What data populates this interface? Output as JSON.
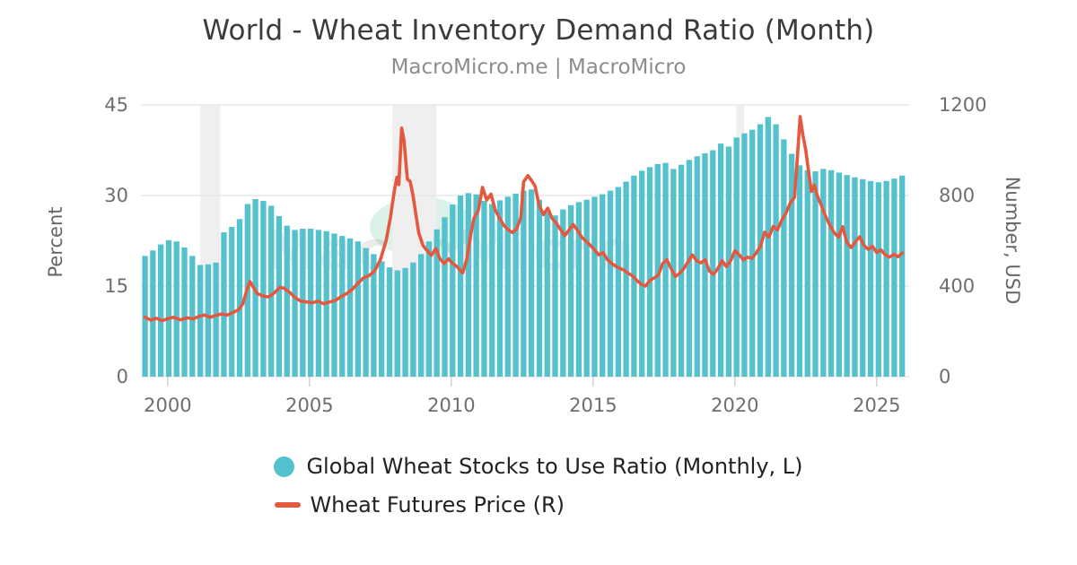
{
  "header": {
    "title": "World - Wheat Inventory Demand Ratio (Month)",
    "subtitle": "MacroMicro.me | MacroMicro"
  },
  "watermark": {
    "text": "MacroMicro",
    "ellipse_color": "#dcf1e8"
  },
  "legend": {
    "items": [
      {
        "label": "Global Wheat Stocks to Use Ratio (Monthly, L)",
        "marker": "circle",
        "color": "#54c2ce"
      },
      {
        "label": "Wheat Futures Price (R)",
        "marker": "line",
        "color": "#e4583f"
      }
    ]
  },
  "chart_data": {
    "type": "combo_bar_line",
    "title": "World - Wheat Inventory Demand Ratio (Month)",
    "subtitle": "MacroMicro.me | MacroMicro",
    "x_axis": {
      "ticks": [
        2000,
        2005,
        2010,
        2015,
        2020,
        2025
      ],
      "range": [
        1999.15,
        2026.05
      ],
      "grid": false
    },
    "left_axis": {
      "label": "Percent",
      "ticks": [
        0,
        15,
        30,
        45
      ],
      "range": [
        0,
        45
      ]
    },
    "right_axis": {
      "label": "Number, USD",
      "ticks": [
        0,
        400,
        800,
        1200
      ],
      "range": [
        0,
        1200
      ]
    },
    "colors": {
      "grid": "#e4e4e4",
      "band": "#efefef",
      "tick_mark": "#d2d2d2",
      "tick_text": "#6e6e6e"
    },
    "recession_bands": [
      [
        2001.15,
        2001.85
      ],
      [
        2007.92,
        2009.48
      ],
      [
        2020.06,
        2020.33
      ]
    ],
    "series": [
      {
        "name": "Global Wheat Stocks to Use Ratio (Monthly, L)",
        "type": "bar",
        "axis": "left",
        "color": "#54c2ce",
        "year_start": 1999.2,
        "year_step": 0.2781,
        "values": [
          20.0,
          20.9,
          21.9,
          22.6,
          22.4,
          21.4,
          20.0,
          18.5,
          18.6,
          18.9,
          23.9,
          24.8,
          26.1,
          28.6,
          29.4,
          29.1,
          28.3,
          26.6,
          25.0,
          24.3,
          24.5,
          24.5,
          24.3,
          24.1,
          23.7,
          23.3,
          22.9,
          22.4,
          21.3,
          20.3,
          19.1,
          18.1,
          17.6,
          18.0,
          18.9,
          20.3,
          22.4,
          24.4,
          26.4,
          28.5,
          30.0,
          30.4,
          30.2,
          29.1,
          28.6,
          29.2,
          29.8,
          30.3,
          30.8,
          31.0,
          29.3,
          27.2,
          26.7,
          27.7,
          28.4,
          28.9,
          29.3,
          29.8,
          30.2,
          30.8,
          31.4,
          32.3,
          33.3,
          34.1,
          34.7,
          35.2,
          35.4,
          34.4,
          35.1,
          35.9,
          36.5,
          37.0,
          37.5,
          38.6,
          38.1,
          39.6,
          40.3,
          40.9,
          41.8,
          43.0,
          41.8,
          39.3,
          36.9,
          35.0,
          34.2,
          34.0,
          34.4,
          34.2,
          33.8,
          33.4,
          33.0,
          32.7,
          32.4,
          32.2,
          32.4,
          32.8,
          33.3
        ]
      },
      {
        "name": "Wheat Futures Price (R)",
        "type": "line",
        "axis": "right",
        "color": "#e4583f",
        "points": [
          [
            1999.2,
            262
          ],
          [
            1999.4,
            250
          ],
          [
            1999.6,
            258
          ],
          [
            1999.8,
            247
          ],
          [
            2000.0,
            256
          ],
          [
            2000.2,
            262
          ],
          [
            2000.45,
            251
          ],
          [
            2000.7,
            260
          ],
          [
            2000.9,
            255
          ],
          [
            2001.1,
            266
          ],
          [
            2001.3,
            272
          ],
          [
            2001.5,
            262
          ],
          [
            2001.7,
            271
          ],
          [
            2001.9,
            277
          ],
          [
            2002.1,
            272
          ],
          [
            2002.3,
            283
          ],
          [
            2002.5,
            296
          ],
          [
            2002.65,
            322
          ],
          [
            2002.8,
            386
          ],
          [
            2002.9,
            420
          ],
          [
            2003.0,
            398
          ],
          [
            2003.15,
            368
          ],
          [
            2003.35,
            357
          ],
          [
            2003.55,
            352
          ],
          [
            2003.75,
            369
          ],
          [
            2003.95,
            394
          ],
          [
            2004.1,
            391
          ],
          [
            2004.3,
            372
          ],
          [
            2004.5,
            348
          ],
          [
            2004.7,
            333
          ],
          [
            2004.9,
            330
          ],
          [
            2005.1,
            326
          ],
          [
            2005.3,
            334
          ],
          [
            2005.5,
            322
          ],
          [
            2005.7,
            330
          ],
          [
            2005.9,
            336
          ],
          [
            2006.1,
            352
          ],
          [
            2006.3,
            366
          ],
          [
            2006.5,
            384
          ],
          [
            2006.7,
            412
          ],
          [
            2006.9,
            436
          ],
          [
            2007.1,
            446
          ],
          [
            2007.3,
            468
          ],
          [
            2007.5,
            516
          ],
          [
            2007.7,
            600
          ],
          [
            2007.85,
            700
          ],
          [
            2008.0,
            826
          ],
          [
            2008.08,
            880
          ],
          [
            2008.15,
            848
          ],
          [
            2008.25,
            1098
          ],
          [
            2008.33,
            1045
          ],
          [
            2008.45,
            872
          ],
          [
            2008.55,
            862
          ],
          [
            2008.65,
            800
          ],
          [
            2008.75,
            718
          ],
          [
            2008.85,
            636
          ],
          [
            2009.0,
            580
          ],
          [
            2009.15,
            556
          ],
          [
            2009.3,
            536
          ],
          [
            2009.45,
            566
          ],
          [
            2009.6,
            520
          ],
          [
            2009.75,
            500
          ],
          [
            2009.9,
            520
          ],
          [
            2010.05,
            500
          ],
          [
            2010.2,
            486
          ],
          [
            2010.4,
            458
          ],
          [
            2010.55,
            520
          ],
          [
            2010.7,
            640
          ],
          [
            2010.8,
            700
          ],
          [
            2010.95,
            734
          ],
          [
            2011.1,
            836
          ],
          [
            2011.25,
            780
          ],
          [
            2011.4,
            806
          ],
          [
            2011.55,
            736
          ],
          [
            2011.7,
            700
          ],
          [
            2011.85,
            668
          ],
          [
            2012.0,
            650
          ],
          [
            2012.15,
            636
          ],
          [
            2012.3,
            652
          ],
          [
            2012.45,
            702
          ],
          [
            2012.55,
            860
          ],
          [
            2012.7,
            888
          ],
          [
            2012.85,
            862
          ],
          [
            2012.95,
            842
          ],
          [
            2013.1,
            756
          ],
          [
            2013.25,
            716
          ],
          [
            2013.4,
            744
          ],
          [
            2013.55,
            700
          ],
          [
            2013.7,
            678
          ],
          [
            2013.85,
            650
          ],
          [
            2014.0,
            622
          ],
          [
            2014.15,
            648
          ],
          [
            2014.3,
            672
          ],
          [
            2014.45,
            646
          ],
          [
            2014.6,
            616
          ],
          [
            2014.75,
            598
          ],
          [
            2014.9,
            580
          ],
          [
            2015.05,
            560
          ],
          [
            2015.2,
            538
          ],
          [
            2015.35,
            548
          ],
          [
            2015.5,
            518
          ],
          [
            2015.65,
            500
          ],
          [
            2015.8,
            488
          ],
          [
            2015.95,
            478
          ],
          [
            2016.1,
            470
          ],
          [
            2016.25,
            456
          ],
          [
            2016.4,
            444
          ],
          [
            2016.55,
            424
          ],
          [
            2016.7,
            408
          ],
          [
            2016.85,
            400
          ],
          [
            2017.0,
            424
          ],
          [
            2017.15,
            436
          ],
          [
            2017.3,
            448
          ],
          [
            2017.45,
            500
          ],
          [
            2017.6,
            516
          ],
          [
            2017.75,
            478
          ],
          [
            2017.9,
            442
          ],
          [
            2018.05,
            456
          ],
          [
            2018.2,
            478
          ],
          [
            2018.35,
            508
          ],
          [
            2018.5,
            538
          ],
          [
            2018.65,
            512
          ],
          [
            2018.8,
            502
          ],
          [
            2018.95,
            516
          ],
          [
            2019.1,
            466
          ],
          [
            2019.25,
            452
          ],
          [
            2019.4,
            478
          ],
          [
            2019.55,
            512
          ],
          [
            2019.7,
            486
          ],
          [
            2019.85,
            512
          ],
          [
            2020.0,
            556
          ],
          [
            2020.15,
            538
          ],
          [
            2020.3,
            516
          ],
          [
            2020.45,
            528
          ],
          [
            2020.6,
            522
          ],
          [
            2020.75,
            546
          ],
          [
            2020.9,
            576
          ],
          [
            2021.05,
            638
          ],
          [
            2021.2,
            616
          ],
          [
            2021.35,
            664
          ],
          [
            2021.5,
            648
          ],
          [
            2021.65,
            690
          ],
          [
            2021.8,
            722
          ],
          [
            2021.95,
            766
          ],
          [
            2022.1,
            792
          ],
          [
            2022.2,
            960
          ],
          [
            2022.3,
            1148
          ],
          [
            2022.4,
            1064
          ],
          [
            2022.5,
            1000
          ],
          [
            2022.6,
            904
          ],
          [
            2022.7,
            818
          ],
          [
            2022.8,
            846
          ],
          [
            2022.9,
            800
          ],
          [
            2023.05,
            756
          ],
          [
            2023.2,
            708
          ],
          [
            2023.35,
            668
          ],
          [
            2023.5,
            636
          ],
          [
            2023.65,
            616
          ],
          [
            2023.8,
            662
          ],
          [
            2023.95,
            592
          ],
          [
            2024.1,
            570
          ],
          [
            2024.25,
            596
          ],
          [
            2024.4,
            618
          ],
          [
            2024.55,
            580
          ],
          [
            2024.7,
            562
          ],
          [
            2024.85,
            576
          ],
          [
            2025.0,
            548
          ],
          [
            2025.15,
            560
          ],
          [
            2025.3,
            538
          ],
          [
            2025.45,
            528
          ],
          [
            2025.6,
            540
          ],
          [
            2025.75,
            530
          ],
          [
            2025.9,
            546
          ]
        ]
      }
    ]
  }
}
